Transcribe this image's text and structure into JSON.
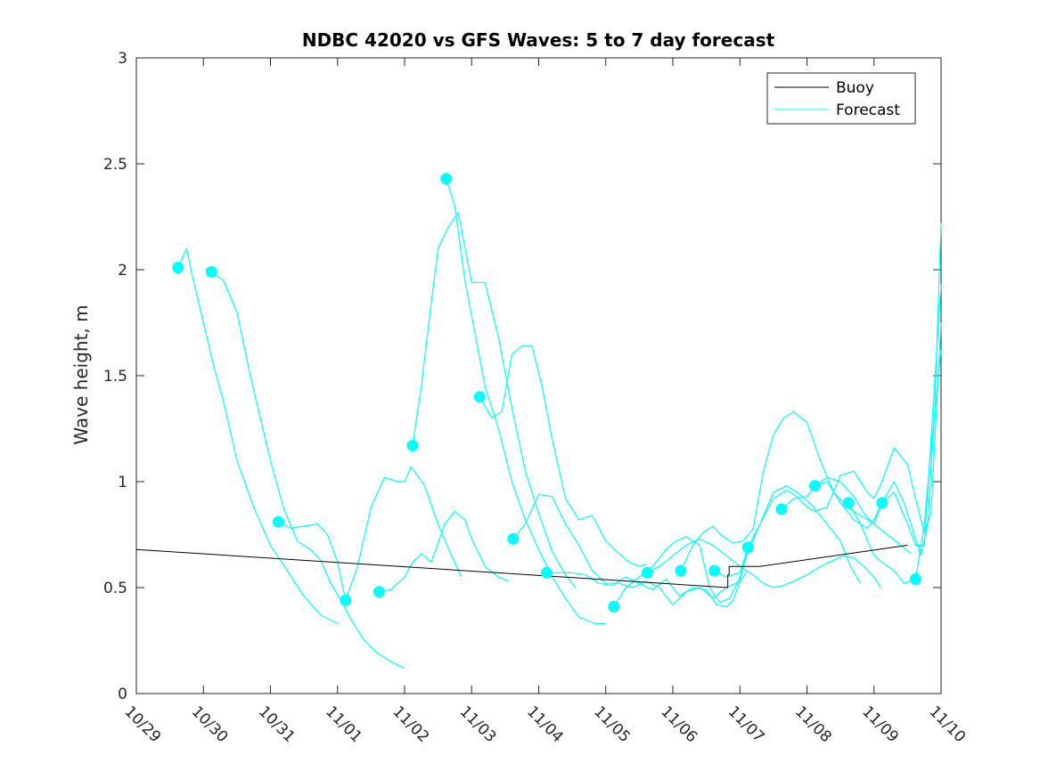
{
  "chart_data": {
    "type": "line",
    "title": "NDBC 42020 vs GFS Waves: 5 to 7 day forecast",
    "xlabel": "",
    "ylabel": "Wave height, m",
    "x_unit": "days since 10/29",
    "xlim": [
      0,
      12
    ],
    "ylim": [
      0,
      3
    ],
    "x_ticks": [
      0,
      1,
      2,
      3,
      4,
      5,
      6,
      7,
      8,
      9,
      10,
      11,
      12
    ],
    "x_tick_labels": [
      "10/29",
      "10/30",
      "10/31",
      "11/01",
      "11/02",
      "11/03",
      "11/04",
      "11/05",
      "11/06",
      "11/07",
      "11/08",
      "11/09",
      "11/10"
    ],
    "y_ticks": [
      0,
      0.5,
      1,
      1.5,
      2,
      2.5,
      3
    ],
    "y_tick_labels": [
      "0",
      "0.5",
      "1",
      "1.5",
      "2",
      "2.5",
      "3"
    ],
    "legend": {
      "placement": "top-right",
      "entries": [
        "Buoy",
        "Forecast"
      ]
    },
    "colors": {
      "buoy": "#000000",
      "forecast": "#00FFFF",
      "axis": "#262626"
    },
    "buoy": {
      "name": "Buoy",
      "x": [
        0,
        8.82,
        8.82,
        8.84,
        8.84,
        9.3,
        11.5
      ],
      "y": [
        0.68,
        0.5,
        0.56,
        0.56,
        0.6,
        0.6,
        0.7
      ]
    },
    "forecast": {
      "name": "Forecast",
      "series": [
        {
          "x": [
            0.62,
            0.75,
            0.85,
            1.0,
            1.15,
            1.3,
            1.5,
            1.75,
            2.0,
            2.25,
            2.5,
            2.75,
            3.0
          ],
          "y": [
            2.01,
            2.1,
            1.95,
            1.75,
            1.55,
            1.38,
            1.1,
            0.88,
            0.7,
            0.58,
            0.46,
            0.37,
            0.33
          ]
        },
        {
          "x": [
            1.12,
            1.3,
            1.5,
            1.7,
            2.0,
            2.2,
            2.4,
            2.6,
            2.75,
            2.9,
            3.05,
            3.2,
            3.4,
            3.6,
            3.8,
            4.0
          ],
          "y": [
            1.99,
            1.95,
            1.8,
            1.5,
            1.1,
            0.87,
            0.72,
            0.68,
            0.63,
            0.52,
            0.44,
            0.35,
            0.25,
            0.19,
            0.15,
            0.12
          ]
        },
        {
          "x": [
            2.12,
            2.3,
            2.5,
            2.7,
            2.85,
            3.0,
            3.12,
            3.3,
            3.5,
            3.7,
            3.9,
            4.0,
            4.1,
            4.3,
            4.5,
            4.7,
            4.85
          ],
          "y": [
            0.81,
            0.78,
            0.79,
            0.8,
            0.75,
            0.62,
            0.44,
            0.6,
            0.88,
            1.02,
            1.0,
            1.0,
            1.07,
            0.98,
            0.8,
            0.65,
            0.55
          ]
        },
        {
          "x": [
            3.62,
            3.8,
            4.0,
            4.12,
            4.25,
            4.4,
            4.6,
            4.75,
            4.9,
            5.0,
            5.2,
            5.4,
            5.55
          ],
          "y": [
            0.48,
            0.49,
            0.55,
            0.62,
            0.66,
            0.62,
            0.8,
            0.86,
            0.82,
            0.73,
            0.6,
            0.55,
            0.53
          ]
        },
        {
          "x": [
            4.12,
            4.25,
            4.4,
            4.5,
            4.65,
            4.8,
            5.0,
            5.2,
            5.4,
            5.6,
            5.8,
            6.0,
            6.2,
            6.4,
            6.55
          ],
          "y": [
            1.17,
            1.45,
            1.85,
            2.1,
            2.2,
            2.27,
            1.94,
            1.94,
            1.68,
            1.35,
            1.05,
            0.85,
            0.67,
            0.56,
            0.5
          ]
        },
        {
          "x": [
            4.62,
            4.75,
            4.9,
            5.05,
            5.2,
            5.4,
            5.6,
            5.8,
            6.0,
            6.2,
            6.4,
            6.6,
            6.85,
            7.0
          ],
          "y": [
            2.43,
            2.3,
            1.95,
            1.7,
            1.45,
            1.25,
            1.0,
            0.82,
            0.68,
            0.55,
            0.45,
            0.36,
            0.33,
            0.33
          ]
        },
        {
          "x": [
            5.12,
            5.3,
            5.45,
            5.6,
            5.75,
            5.9,
            6.05,
            6.2,
            6.4,
            6.6,
            6.8,
            7.0,
            7.2,
            7.35,
            7.5,
            7.6
          ],
          "y": [
            1.4,
            1.3,
            1.33,
            1.6,
            1.64,
            1.64,
            1.45,
            1.2,
            0.92,
            0.82,
            0.84,
            0.72,
            0.66,
            0.62,
            0.6,
            0.61
          ]
        },
        {
          "x": [
            5.62,
            5.8,
            6.0,
            6.2,
            6.4,
            6.6,
            6.8,
            7.0,
            7.2,
            7.4,
            7.6,
            7.8,
            8.0,
            8.2,
            8.4,
            8.6,
            8.8,
            9.0,
            9.1
          ],
          "y": [
            0.73,
            0.8,
            0.94,
            0.93,
            0.8,
            0.7,
            0.58,
            0.52,
            0.52,
            0.5,
            0.53,
            0.5,
            0.42,
            0.48,
            0.5,
            0.45,
            0.5,
            0.53,
            0.57
          ]
        },
        {
          "x": [
            6.12,
            6.3,
            6.5,
            6.7,
            6.9,
            7.1,
            7.3,
            7.5,
            7.7,
            7.9,
            8.1,
            8.3,
            8.5,
            8.65,
            8.8,
            8.9,
            9.0,
            9.12
          ],
          "y": [
            0.57,
            0.57,
            0.57,
            0.56,
            0.52,
            0.51,
            0.55,
            0.52,
            0.49,
            0.54,
            0.46,
            0.5,
            0.49,
            0.42,
            0.41,
            0.44,
            0.53,
            0.69
          ]
        },
        {
          "x": [
            7.12,
            7.3,
            7.5,
            7.7,
            7.9,
            8.05,
            8.2,
            8.4,
            8.55,
            8.7,
            8.85,
            9.0,
            9.1,
            9.3,
            9.5,
            9.7,
            9.9,
            10.1,
            10.3,
            10.5,
            10.65,
            10.8
          ],
          "y": [
            0.41,
            0.5,
            0.55,
            0.6,
            0.68,
            0.72,
            0.74,
            0.7,
            0.5,
            0.43,
            0.45,
            0.55,
            0.65,
            0.8,
            0.95,
            0.98,
            0.94,
            0.88,
            0.8,
            0.72,
            0.6,
            0.52
          ]
        },
        {
          "x": [
            7.62,
            7.8,
            8.0,
            8.2,
            8.4,
            8.6,
            8.8,
            9.0,
            9.2,
            9.35,
            9.5,
            9.65,
            9.8,
            10.0,
            10.2,
            10.4,
            10.55,
            10.7,
            10.85,
            11.0,
            11.1
          ],
          "y": [
            0.57,
            0.6,
            0.65,
            0.7,
            0.73,
            0.7,
            0.65,
            0.6,
            0.56,
            0.52,
            0.5,
            0.51,
            0.53,
            0.56,
            0.6,
            0.63,
            0.65,
            0.64,
            0.6,
            0.55,
            0.5
          ]
        },
        {
          "x": [
            8.12,
            8.3,
            8.45,
            8.6,
            8.75,
            8.9,
            9.05,
            9.2,
            9.35,
            9.5,
            9.65,
            9.8,
            10.0,
            10.2,
            10.4,
            10.6,
            10.8,
            11.0,
            11.2,
            11.4,
            11.55
          ],
          "y": [
            0.58,
            0.7,
            0.76,
            0.79,
            0.74,
            0.71,
            0.72,
            0.78,
            1.05,
            1.22,
            1.3,
            1.33,
            1.28,
            1.1,
            0.95,
            0.88,
            0.84,
            0.8,
            0.75,
            0.7,
            0.66
          ]
        },
        {
          "x": [
            8.62,
            8.8,
            9.0,
            9.12,
            9.3,
            9.5,
            9.7,
            9.85,
            10.0,
            10.12,
            10.3,
            10.5,
            10.7,
            10.9,
            11.0,
            11.12,
            11.3,
            11.5,
            11.62,
            11.75,
            11.85,
            12.0
          ],
          "y": [
            0.58,
            0.55,
            0.57,
            0.69,
            0.8,
            0.92,
            0.96,
            0.93,
            0.88,
            0.86,
            0.88,
            1.03,
            1.05,
            0.95,
            0.92,
            1.0,
            1.16,
            1.08,
            0.92,
            0.76,
            0.85,
            1.75
          ]
        },
        {
          "x": [
            9.62,
            9.8,
            10.0,
            10.12,
            10.3,
            10.5,
            10.7,
            10.85,
            11.0,
            11.12,
            11.3,
            11.45,
            11.6,
            11.7,
            11.8,
            11.9,
            12.0
          ],
          "y": [
            0.87,
            0.92,
            0.93,
            0.98,
            1.02,
            1.0,
            0.93,
            0.85,
            0.8,
            0.9,
            1.0,
            0.9,
            0.75,
            0.65,
            0.8,
            1.3,
            2.22
          ]
        },
        {
          "x": [
            10.12,
            10.3,
            10.5,
            10.7,
            10.9,
            11.0,
            11.12,
            11.3,
            11.5,
            11.62,
            11.75,
            11.85,
            12.0
          ],
          "y": [
            0.98,
            1.0,
            0.9,
            0.82,
            0.78,
            0.82,
            0.9,
            0.95,
            0.8,
            0.7,
            0.7,
            1.2,
            1.93
          ]
        },
        {
          "x": [
            10.62,
            10.8,
            11.0,
            11.12,
            11.3,
            11.45,
            11.62,
            11.75,
            11.85,
            12.0
          ],
          "y": [
            0.9,
            0.8,
            0.65,
            0.62,
            0.58,
            0.52,
            0.54,
            0.8,
            1.15,
            1.62
          ]
        }
      ]
    },
    "markers": {
      "name": "Forecast start",
      "x": [
        0.62,
        1.12,
        2.12,
        3.12,
        3.62,
        4.12,
        4.62,
        5.12,
        5.62,
        6.12,
        7.12,
        7.62,
        8.12,
        8.62,
        9.12,
        9.62,
        10.12,
        10.62,
        11.12,
        11.62
      ],
      "y": [
        2.01,
        1.99,
        0.81,
        0.44,
        0.48,
        1.17,
        2.43,
        1.4,
        0.73,
        0.57,
        0.41,
        0.57,
        0.58,
        0.58,
        0.69,
        0.87,
        0.98,
        0.9,
        0.9,
        0.54
      ]
    }
  }
}
